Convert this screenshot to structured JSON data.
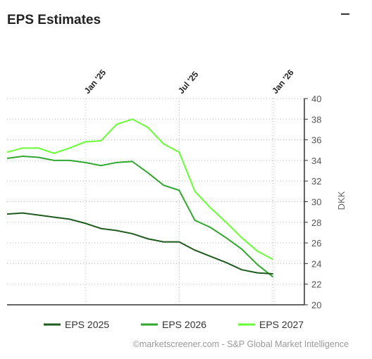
{
  "chart_data": {
    "type": "line",
    "title": "EPS Estimates",
    "y_label": "DKK",
    "source": "©marketscreener.com - S&P Global Market Intelligence",
    "x": [
      "2024-08",
      "2024-09",
      "2024-10",
      "2024-11",
      "2024-12",
      "2025-01",
      "2025-02",
      "2025-03",
      "2025-04",
      "2025-05",
      "2025-06",
      "2025-07",
      "2025-08",
      "2025-09",
      "2025-10",
      "2025-11",
      "2025-12",
      "2026-01"
    ],
    "series": [
      {
        "name": "EPS 2025",
        "color": "#1f5a1f",
        "values": [
          28.8,
          28.9,
          28.7,
          28.5,
          28.3,
          27.9,
          27.4,
          27.2,
          26.9,
          26.4,
          26.1,
          26.1,
          25.3,
          24.7,
          24.1,
          23.4,
          23.1,
          23.0
        ]
      },
      {
        "name": "EPS 2026",
        "color": "#2ea82e",
        "values": [
          34.2,
          34.4,
          34.3,
          34.0,
          34.0,
          33.8,
          33.5,
          33.8,
          33.9,
          32.8,
          31.6,
          31.1,
          28.2,
          27.5,
          26.5,
          25.4,
          23.9,
          22.7
        ]
      },
      {
        "name": "EPS 2027",
        "color": "#66ff33",
        "values": [
          34.8,
          35.2,
          35.2,
          34.7,
          35.2,
          35.8,
          35.9,
          37.5,
          38.0,
          37.2,
          35.6,
          34.8,
          31.0,
          29.4,
          28.0,
          26.5,
          25.2,
          24.4
        ]
      }
    ],
    "xlim": [
      "2024-08",
      "2026-03"
    ],
    "xticks": [
      {
        "value": "2025-01",
        "label": "Jan '25"
      },
      {
        "value": "2025-07",
        "label": "Jul '25"
      },
      {
        "value": "2026-01",
        "label": "Jan '26"
      }
    ],
    "ylim": [
      20,
      40
    ],
    "yticks": [
      20,
      22,
      24,
      26,
      28,
      30,
      32,
      34,
      36,
      38,
      40
    ],
    "grid": true,
    "y_axis_side": "right"
  }
}
